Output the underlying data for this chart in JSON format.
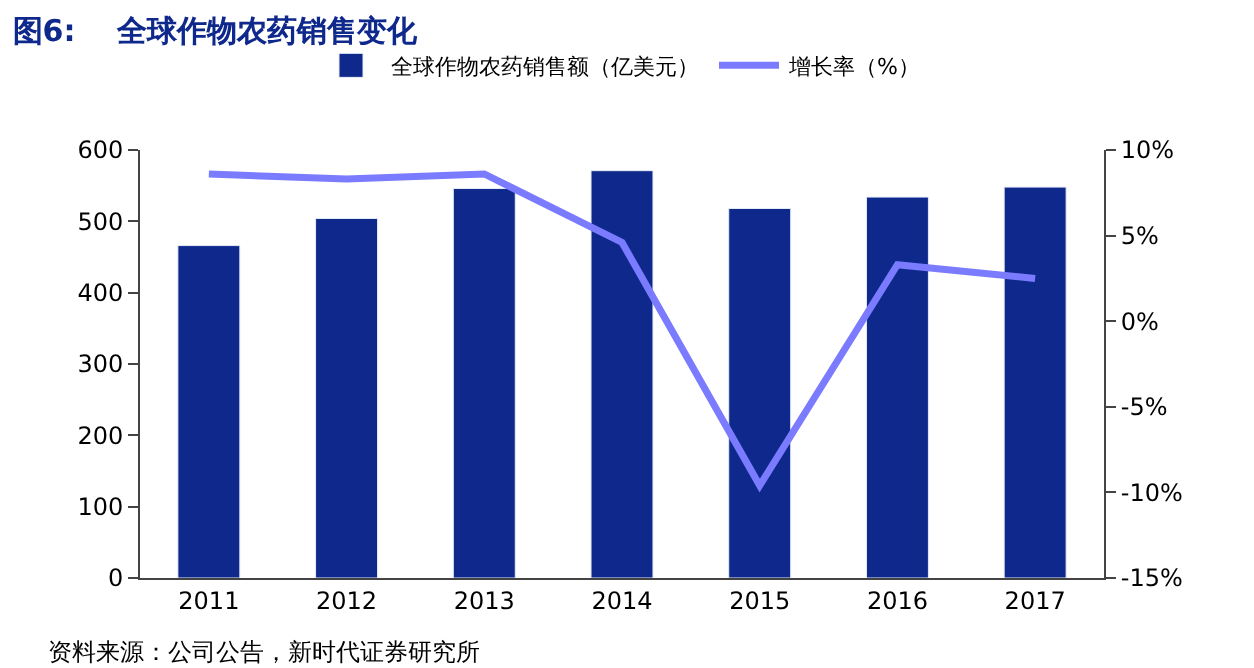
{
  "chart_data": {
    "type": "bar",
    "title": "图6:    全球作物农药销售变化",
    "categories": [
      "2011",
      "2012",
      "2013",
      "2014",
      "2015",
      "2016",
      "2017"
    ],
    "series": [
      {
        "name": "全球作物农药销售额（亿美元）",
        "color": "#0f288c",
        "values": [
          466,
          504,
          546,
          571,
          518,
          534,
          548
        ]
      },
      {
        "name": "增长率（%）",
        "type": "line",
        "axis": "y2",
        "color": "#7b7bff",
        "values": [
          8.6,
          8.3,
          8.6,
          4.6,
          -9.6,
          3.3,
          2.5
        ]
      }
    ],
    "ylim": [
      0,
      600
    ],
    "yticks": [
      0,
      100,
      200,
      300,
      400,
      500,
      600
    ],
    "y2lim": [
      -15,
      10
    ],
    "y2ticks": [
      {
        "value": -15,
        "label": "-15%"
      },
      {
        "value": -10,
        "label": "-10%"
      },
      {
        "value": -5,
        "label": "-5%"
      },
      {
        "value": 0,
        "label": "0%"
      },
      {
        "value": 5,
        "label": "5%"
      },
      {
        "value": 10,
        "label": "10%"
      }
    ],
    "legend": "top",
    "annotations": [
      "资料来源：公司公告，新时代证券研究所"
    ]
  }
}
